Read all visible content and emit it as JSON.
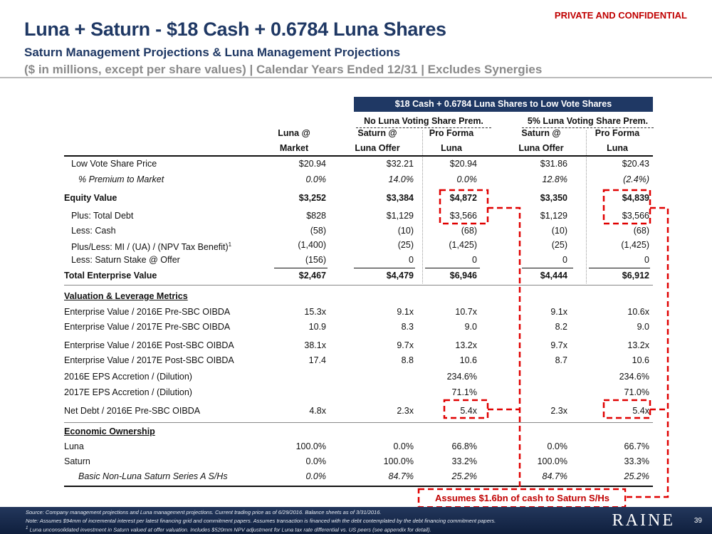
{
  "confidential": "PRIVATE AND CONFIDENTIAL",
  "title": "Luna + Saturn - $18 Cash + 0.6784 Luna Shares",
  "subtitle1": "Saturn Management Projections & Luna Management Projections",
  "subtitle2": "($ in millions, except per share values) | Calendar Years Ended 12/31 | Excludes Synergies",
  "banner": "$18 Cash + 0.6784 Luna Shares to Low Vote Shares",
  "groups": [
    "No Luna Voting Share Prem.",
    "5% Luna Voting Share Prem."
  ],
  "columns": [
    [
      "Luna @",
      "Market"
    ],
    [
      "Saturn @",
      "Luna Offer"
    ],
    [
      "Pro Forma",
      "Luna"
    ],
    [
      "Saturn @",
      "Luna Offer"
    ],
    [
      "Pro Forma",
      "Luna"
    ]
  ],
  "rows": [
    {
      "label": "Low Vote Share Price",
      "v": [
        "$20.94",
        "$32.21",
        "$20.94",
        "$31.86",
        "$20.43"
      ]
    },
    {
      "label": "% Premium to Market",
      "v": [
        "0.0%",
        "14.0%",
        "0.0%",
        "12.8%",
        "(2.4%)"
      ]
    },
    {
      "label": "Equity Value",
      "v": [
        "$3,252",
        "$3,384",
        "$4,872",
        "$3,350",
        "$4,839"
      ]
    },
    {
      "label": "Plus: Total Debt",
      "v": [
        "$828",
        "$1,129",
        "$3,566",
        "$1,129",
        "$3,566"
      ]
    },
    {
      "label": "Less: Cash",
      "v": [
        "(58)",
        "(10)",
        "(68)",
        "(10)",
        "(68)"
      ]
    },
    {
      "label": "Plus/Less: MI / (UA) / (NPV Tax Benefit)",
      "sup": "1",
      "v": [
        "(1,400)",
        "(25)",
        "(1,425)",
        "(25)",
        "(1,425)"
      ]
    },
    {
      "label": "Less: Saturn Stake @ Offer",
      "v": [
        "(156)",
        "0",
        "0",
        "0",
        "0"
      ]
    },
    {
      "label": "Total Enterprise Value",
      "v": [
        "$2,467",
        "$4,479",
        "$6,946",
        "$4,444",
        "$6,912"
      ]
    },
    {
      "label": "Valuation & Leverage Metrics",
      "v": [
        "",
        "",
        "",
        "",
        ""
      ]
    },
    {
      "label": "Enterprise Value / 2016E Pre-SBC OIBDA",
      "v": [
        "15.3x",
        "9.1x",
        "10.7x",
        "9.1x",
        "10.6x"
      ]
    },
    {
      "label": "Enterprise Value / 2017E Pre-SBC OIBDA",
      "v": [
        "10.9",
        "8.3",
        "9.0",
        "8.2",
        "9.0"
      ]
    },
    {
      "label": "Enterprise Value / 2016E Post-SBC OIBDA",
      "v": [
        "38.1x",
        "9.7x",
        "13.2x",
        "9.7x",
        "13.2x"
      ]
    },
    {
      "label": "Enterprise Value / 2017E Post-SBC OIBDA",
      "v": [
        "17.4",
        "8.8",
        "10.6",
        "8.7",
        "10.6"
      ]
    },
    {
      "label": "2016E EPS Accretion / (Dilution)",
      "v": [
        "",
        "",
        "234.6%",
        "",
        "234.6%"
      ]
    },
    {
      "label": "2017E EPS Accretion / (Dilution)",
      "v": [
        "",
        "",
        "71.1%",
        "",
        "71.0%"
      ]
    },
    {
      "label": "Net Debt / 2016E Pre-SBC OIBDA",
      "v": [
        "4.8x",
        "2.3x",
        "5.4x",
        "2.3x",
        "5.4x"
      ]
    },
    {
      "label": "Economic Ownership",
      "v": [
        "",
        "",
        "",
        "",
        ""
      ]
    },
    {
      "label": "Luna",
      "v": [
        "100.0%",
        "0.0%",
        "66.8%",
        "0.0%",
        "66.7%"
      ]
    },
    {
      "label": "Saturn",
      "v": [
        "0.0%",
        "100.0%",
        "33.2%",
        "100.0%",
        "33.3%"
      ]
    },
    {
      "label": "Basic Non-Luna Saturn Series A S/Hs",
      "v": [
        "0.0%",
        "84.7%",
        "25.2%",
        "84.7%",
        "25.2%"
      ]
    }
  ],
  "callout": "Assumes $1.6bn of cash to Saturn S/Hs",
  "footnotes": [
    "Source: Company management projections and Luna management projections. Current trading price as of 6/29/2016. Balance sheets as of 3/31/2016.",
    "Note: Assumes $94mm of incremental interest per latest financing grid and commitment papers. Assumes transaction is financed with the debt contemplated by the debt financing commitment papers.",
    "Luna unconsolidated investment in Saturn valued at offer valuation. Includes $520mm NPV adjustment for Luna tax rate differential vs. US peers (see appendix for detail)."
  ],
  "footnote_mark": "1",
  "logo": "RAINE",
  "page": "39",
  "colors": {
    "navy": "#1f3864",
    "red": "#c00000"
  }
}
